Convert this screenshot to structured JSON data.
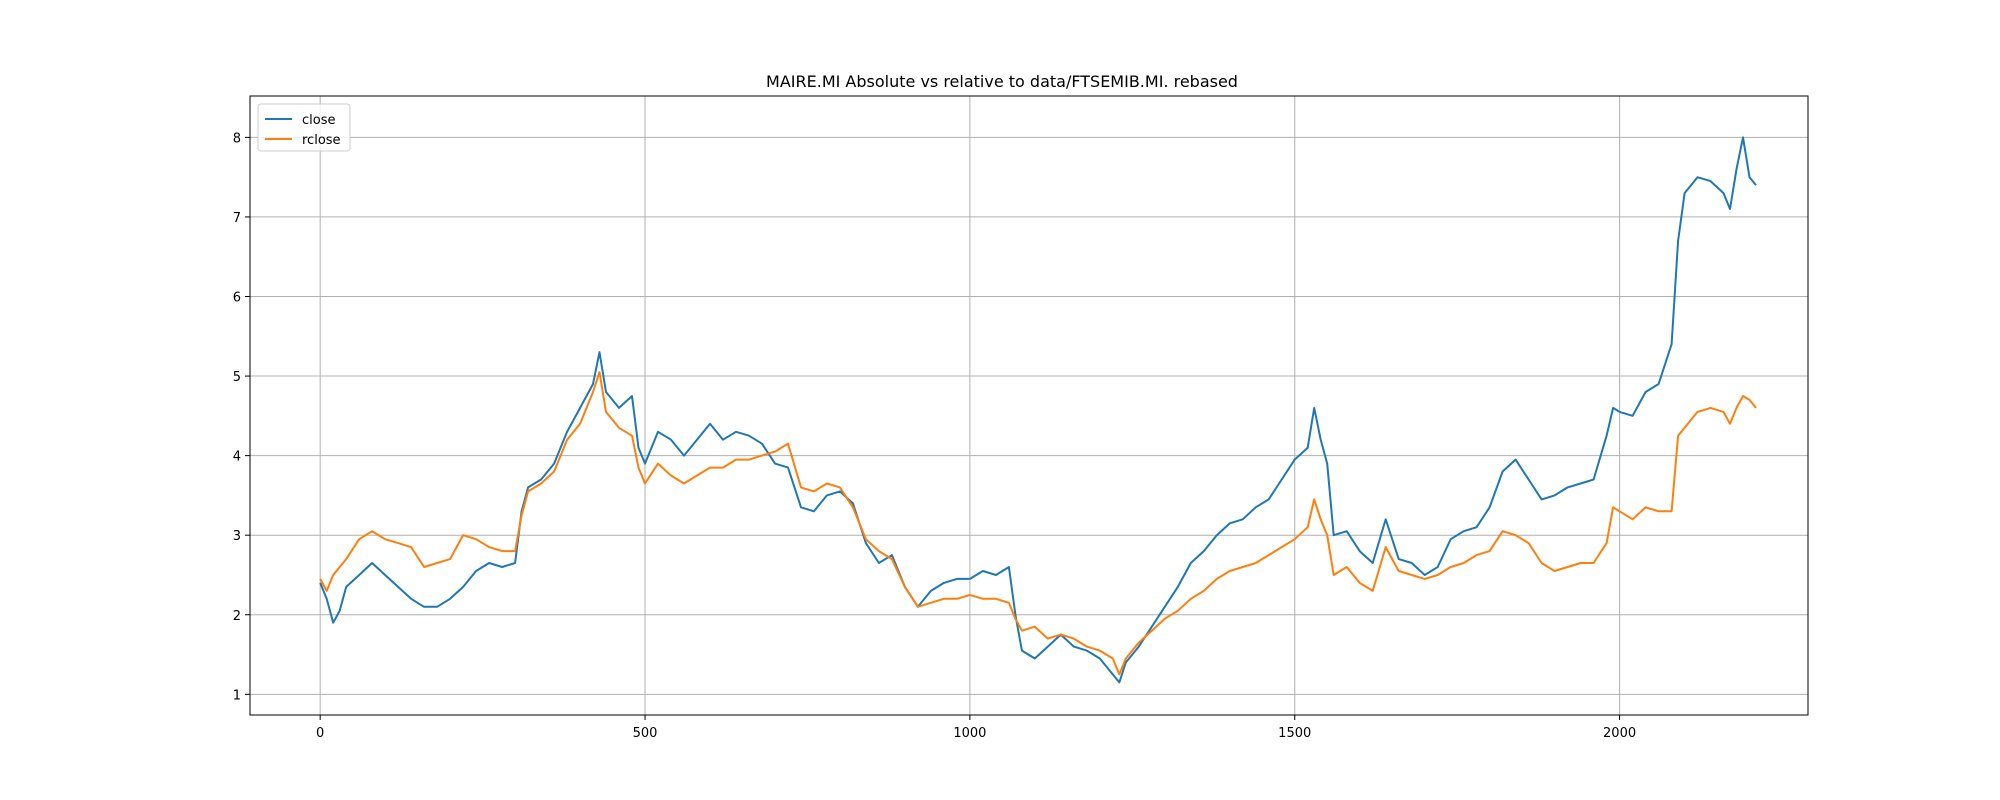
{
  "chart_data": {
    "type": "line",
    "title": "MAIRE.MI Absolute vs relative to data/FTSEMIB.MI. rebased",
    "xlabel": "",
    "ylabel": "",
    "xlim": [
      -108,
      2290
    ],
    "ylim": [
      0.74,
      8.52
    ],
    "xticks": [
      0,
      500,
      1000,
      1500,
      2000
    ],
    "yticks": [
      1,
      2,
      3,
      4,
      5,
      6,
      7,
      8
    ],
    "grid": true,
    "legend_position": "top-left",
    "colors": {
      "close": "#1f77b4",
      "rclose": "#ff7f0e"
    },
    "series": [
      {
        "name": "close",
        "points": [
          [
            0,
            2.4
          ],
          [
            10,
            2.2
          ],
          [
            20,
            1.9
          ],
          [
            30,
            2.05
          ],
          [
            40,
            2.35
          ],
          [
            60,
            2.5
          ],
          [
            80,
            2.65
          ],
          [
            100,
            2.5
          ],
          [
            120,
            2.35
          ],
          [
            140,
            2.2
          ],
          [
            160,
            2.1
          ],
          [
            180,
            2.1
          ],
          [
            200,
            2.2
          ],
          [
            220,
            2.35
          ],
          [
            240,
            2.55
          ],
          [
            260,
            2.65
          ],
          [
            280,
            2.6
          ],
          [
            300,
            2.65
          ],
          [
            310,
            3.3
          ],
          [
            320,
            3.6
          ],
          [
            340,
            3.7
          ],
          [
            360,
            3.9
          ],
          [
            380,
            4.3
          ],
          [
            400,
            4.6
          ],
          [
            420,
            4.9
          ],
          [
            430,
            5.3
          ],
          [
            440,
            4.8
          ],
          [
            460,
            4.6
          ],
          [
            480,
            4.75
          ],
          [
            490,
            4.1
          ],
          [
            500,
            3.9
          ],
          [
            520,
            4.3
          ],
          [
            540,
            4.2
          ],
          [
            560,
            4.0
          ],
          [
            580,
            4.2
          ],
          [
            600,
            4.4
          ],
          [
            620,
            4.2
          ],
          [
            640,
            4.3
          ],
          [
            660,
            4.25
          ],
          [
            680,
            4.15
          ],
          [
            700,
            3.9
          ],
          [
            720,
            3.85
          ],
          [
            740,
            3.35
          ],
          [
            760,
            3.3
          ],
          [
            780,
            3.5
          ],
          [
            800,
            3.55
          ],
          [
            820,
            3.4
          ],
          [
            840,
            2.9
          ],
          [
            860,
            2.65
          ],
          [
            880,
            2.75
          ],
          [
            900,
            2.35
          ],
          [
            920,
            2.1
          ],
          [
            940,
            2.3
          ],
          [
            960,
            2.4
          ],
          [
            980,
            2.45
          ],
          [
            1000,
            2.45
          ],
          [
            1020,
            2.55
          ],
          [
            1040,
            2.5
          ],
          [
            1060,
            2.6
          ],
          [
            1070,
            2.0
          ],
          [
            1080,
            1.55
          ],
          [
            1100,
            1.45
          ],
          [
            1120,
            1.6
          ],
          [
            1140,
            1.75
          ],
          [
            1160,
            1.6
          ],
          [
            1180,
            1.55
          ],
          [
            1200,
            1.45
          ],
          [
            1220,
            1.25
          ],
          [
            1230,
            1.15
          ],
          [
            1240,
            1.4
          ],
          [
            1260,
            1.6
          ],
          [
            1280,
            1.85
          ],
          [
            1300,
            2.1
          ],
          [
            1320,
            2.35
          ],
          [
            1340,
            2.65
          ],
          [
            1360,
            2.8
          ],
          [
            1380,
            3.0
          ],
          [
            1400,
            3.15
          ],
          [
            1420,
            3.2
          ],
          [
            1440,
            3.35
          ],
          [
            1460,
            3.45
          ],
          [
            1480,
            3.7
          ],
          [
            1500,
            3.95
          ],
          [
            1520,
            4.1
          ],
          [
            1530,
            4.6
          ],
          [
            1540,
            4.2
          ],
          [
            1550,
            3.9
          ],
          [
            1560,
            3.0
          ],
          [
            1580,
            3.05
          ],
          [
            1600,
            2.8
          ],
          [
            1620,
            2.65
          ],
          [
            1640,
            3.2
          ],
          [
            1660,
            2.7
          ],
          [
            1680,
            2.65
          ],
          [
            1700,
            2.5
          ],
          [
            1720,
            2.6
          ],
          [
            1740,
            2.95
          ],
          [
            1760,
            3.05
          ],
          [
            1780,
            3.1
          ],
          [
            1800,
            3.35
          ],
          [
            1820,
            3.8
          ],
          [
            1840,
            3.95
          ],
          [
            1860,
            3.7
          ],
          [
            1880,
            3.45
          ],
          [
            1900,
            3.5
          ],
          [
            1920,
            3.6
          ],
          [
            1940,
            3.65
          ],
          [
            1960,
            3.7
          ],
          [
            1980,
            4.25
          ],
          [
            1990,
            4.6
          ],
          [
            2000,
            4.55
          ],
          [
            2020,
            4.5
          ],
          [
            2040,
            4.8
          ],
          [
            2060,
            4.9
          ],
          [
            2080,
            5.4
          ],
          [
            2090,
            6.7
          ],
          [
            2100,
            7.3
          ],
          [
            2120,
            7.5
          ],
          [
            2140,
            7.45
          ],
          [
            2160,
            7.3
          ],
          [
            2170,
            7.1
          ],
          [
            2180,
            7.6
          ],
          [
            2190,
            8.0
          ],
          [
            2200,
            7.5
          ],
          [
            2210,
            7.4
          ]
        ]
      },
      {
        "name": "rclose",
        "points": [
          [
            0,
            2.45
          ],
          [
            10,
            2.3
          ],
          [
            20,
            2.5
          ],
          [
            40,
            2.7
          ],
          [
            60,
            2.95
          ],
          [
            80,
            3.05
          ],
          [
            100,
            2.95
          ],
          [
            120,
            2.9
          ],
          [
            140,
            2.85
          ],
          [
            160,
            2.6
          ],
          [
            180,
            2.65
          ],
          [
            200,
            2.7
          ],
          [
            220,
            3.0
          ],
          [
            240,
            2.95
          ],
          [
            260,
            2.85
          ],
          [
            280,
            2.8
          ],
          [
            300,
            2.8
          ],
          [
            310,
            3.25
          ],
          [
            320,
            3.55
          ],
          [
            340,
            3.65
          ],
          [
            360,
            3.8
          ],
          [
            380,
            4.2
          ],
          [
            400,
            4.4
          ],
          [
            420,
            4.8
          ],
          [
            430,
            5.05
          ],
          [
            440,
            4.55
          ],
          [
            460,
            4.35
          ],
          [
            480,
            4.25
          ],
          [
            490,
            3.85
          ],
          [
            500,
            3.65
          ],
          [
            520,
            3.9
          ],
          [
            540,
            3.75
          ],
          [
            560,
            3.65
          ],
          [
            580,
            3.75
          ],
          [
            600,
            3.85
          ],
          [
            620,
            3.85
          ],
          [
            640,
            3.95
          ],
          [
            660,
            3.95
          ],
          [
            680,
            4.0
          ],
          [
            700,
            4.05
          ],
          [
            720,
            4.15
          ],
          [
            740,
            3.6
          ],
          [
            760,
            3.55
          ],
          [
            780,
            3.65
          ],
          [
            800,
            3.6
          ],
          [
            820,
            3.35
          ],
          [
            840,
            2.95
          ],
          [
            860,
            2.8
          ],
          [
            880,
            2.7
          ],
          [
            900,
            2.35
          ],
          [
            920,
            2.1
          ],
          [
            940,
            2.15
          ],
          [
            960,
            2.2
          ],
          [
            980,
            2.2
          ],
          [
            1000,
            2.25
          ],
          [
            1020,
            2.2
          ],
          [
            1040,
            2.2
          ],
          [
            1060,
            2.15
          ],
          [
            1070,
            1.95
          ],
          [
            1080,
            1.8
          ],
          [
            1100,
            1.85
          ],
          [
            1120,
            1.7
          ],
          [
            1140,
            1.75
          ],
          [
            1160,
            1.7
          ],
          [
            1180,
            1.6
          ],
          [
            1200,
            1.55
          ],
          [
            1220,
            1.45
          ],
          [
            1230,
            1.25
          ],
          [
            1240,
            1.45
          ],
          [
            1260,
            1.65
          ],
          [
            1280,
            1.8
          ],
          [
            1300,
            1.95
          ],
          [
            1320,
            2.05
          ],
          [
            1340,
            2.2
          ],
          [
            1360,
            2.3
          ],
          [
            1380,
            2.45
          ],
          [
            1400,
            2.55
          ],
          [
            1420,
            2.6
          ],
          [
            1440,
            2.65
          ],
          [
            1460,
            2.75
          ],
          [
            1480,
            2.85
          ],
          [
            1500,
            2.95
          ],
          [
            1520,
            3.1
          ],
          [
            1530,
            3.45
          ],
          [
            1540,
            3.2
          ],
          [
            1550,
            3.0
          ],
          [
            1560,
            2.5
          ],
          [
            1580,
            2.6
          ],
          [
            1600,
            2.4
          ],
          [
            1620,
            2.3
          ],
          [
            1640,
            2.85
          ],
          [
            1660,
            2.55
          ],
          [
            1680,
            2.5
          ],
          [
            1700,
            2.45
          ],
          [
            1720,
            2.5
          ],
          [
            1740,
            2.6
          ],
          [
            1760,
            2.65
          ],
          [
            1780,
            2.75
          ],
          [
            1800,
            2.8
          ],
          [
            1820,
            3.05
          ],
          [
            1840,
            3.0
          ],
          [
            1860,
            2.9
          ],
          [
            1880,
            2.65
          ],
          [
            1900,
            2.55
          ],
          [
            1920,
            2.6
          ],
          [
            1940,
            2.65
          ],
          [
            1960,
            2.65
          ],
          [
            1980,
            2.9
          ],
          [
            1990,
            3.35
          ],
          [
            2000,
            3.3
          ],
          [
            2020,
            3.2
          ],
          [
            2040,
            3.35
          ],
          [
            2060,
            3.3
          ],
          [
            2080,
            3.3
          ],
          [
            2090,
            4.25
          ],
          [
            2100,
            4.35
          ],
          [
            2120,
            4.55
          ],
          [
            2140,
            4.6
          ],
          [
            2160,
            4.55
          ],
          [
            2170,
            4.4
          ],
          [
            2180,
            4.6
          ],
          [
            2190,
            4.75
          ],
          [
            2200,
            4.7
          ],
          [
            2210,
            4.6
          ]
        ]
      }
    ]
  }
}
